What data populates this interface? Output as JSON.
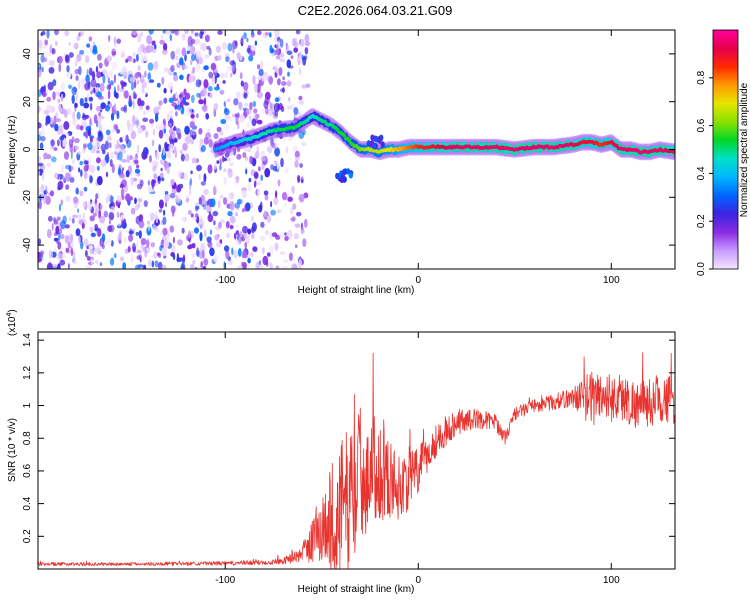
{
  "title": "C2E2.2026.064.03.21.G09",
  "chart_data": [
    {
      "type": "heatmap",
      "xlabel": "Height of straight line (km)",
      "ylabel": "Frequency (Hz)",
      "xlim": [
        -197,
        133
      ],
      "ylim": [
        -50,
        50
      ],
      "xticks": [
        -100,
        0,
        100
      ],
      "yticks": [
        -40,
        -20,
        0,
        20,
        40
      ],
      "colorbar": {
        "label": "Normalized spectral amplitude",
        "range": [
          0,
          1
        ],
        "ticks": [
          0.0,
          0.2,
          0.4,
          0.6,
          0.8
        ],
        "colors": [
          "#f4e6ff",
          "#c79bff",
          "#8a2be2",
          "#3a24e0",
          "#0066ff",
          "#00b7ff",
          "#00e0c8",
          "#00d62a",
          "#8ae000",
          "#e6e600",
          "#ff9a00",
          "#ff2a00",
          "#e6004d",
          "#ff0099"
        ]
      },
      "noise_region": {
        "x_from": -197,
        "x_to": -72,
        "note": "broadband low-amplitude noise"
      },
      "ridge": {
        "height_km": [
          -105,
          -95,
          -85,
          -75,
          -65,
          -60,
          -55,
          -50,
          -45,
          -40,
          -35,
          -30,
          -25,
          -20,
          -15,
          -10,
          -5,
          0,
          10,
          20,
          30,
          40,
          50,
          60,
          70,
          80,
          85,
          90,
          95,
          100,
          105,
          110,
          115,
          120,
          125,
          133
        ],
        "frequency_hz": [
          0,
          3,
          5,
          8,
          9,
          11,
          14,
          12,
          10,
          7,
          3,
          0,
          0,
          -1,
          0,
          0,
          1,
          1,
          1,
          1,
          1,
          1,
          0,
          1,
          1,
          2,
          3,
          3,
          2,
          3,
          0,
          0,
          -1,
          -1,
          0,
          -1
        ],
        "amplitude": [
          0.35,
          0.4,
          0.45,
          0.5,
          0.55,
          0.5,
          0.45,
          0.5,
          0.5,
          0.55,
          0.55,
          0.6,
          0.65,
          0.65,
          0.7,
          0.75,
          0.8,
          0.85,
          0.9,
          0.95,
          0.95,
          0.95,
          0.95,
          0.95,
          0.95,
          0.95,
          0.9,
          0.9,
          0.85,
          0.9,
          0.95,
          0.95,
          0.95,
          0.95,
          0.95,
          0.9
        ]
      },
      "secondary_patches": [
        {
          "height_km": -38,
          "frequency_hz": -11,
          "amplitude": 0.35
        },
        {
          "height_km": -22,
          "frequency_hz": 3,
          "amplitude": 0.3
        }
      ]
    },
    {
      "type": "line",
      "xlabel": "Height of straight line (km)",
      "ylabel": "SNR (10 * v/v)",
      "y_multiplier_label": "(x10",
      "y_multiplier_exponent": "4",
      "y_multiplier_close": ")",
      "xlim": [
        -197,
        133
      ],
      "ylim": [
        0,
        1.45
      ],
      "xticks": [
        -100,
        0,
        100
      ],
      "yticks": [
        0.2,
        0.4,
        0.6,
        0.8,
        1.0,
        1.2,
        1.4
      ],
      "series": [
        {
          "name": "SNR",
          "color": "#e8332f",
          "x": [
            -197,
            -150,
            -100,
            -80,
            -70,
            -62,
            -58,
            -55,
            -50,
            -45,
            -40,
            -35,
            -32,
            -28,
            -25,
            -20,
            -15,
            -10,
            -5,
            0,
            5,
            10,
            20,
            30,
            40,
            45,
            50,
            60,
            70,
            80,
            85,
            90,
            95,
            100,
            105,
            110,
            115,
            120,
            125,
            133
          ],
          "y": [
            0.03,
            0.03,
            0.035,
            0.04,
            0.05,
            0.08,
            0.12,
            0.18,
            0.25,
            0.3,
            0.35,
            0.45,
            0.55,
            0.6,
            0.62,
            0.6,
            0.55,
            0.5,
            0.55,
            0.6,
            0.7,
            0.8,
            0.9,
            0.92,
            0.9,
            0.8,
            0.95,
            1.0,
            1.02,
            1.05,
            1.05,
            1.05,
            1.06,
            1.05,
            1.05,
            1.02,
            1.0,
            1.02,
            1.05,
            1.03
          ],
          "spread": [
            0.01,
            0.01,
            0.012,
            0.015,
            0.02,
            0.04,
            0.08,
            0.15,
            0.25,
            0.35,
            0.45,
            0.45,
            0.45,
            0.42,
            0.35,
            0.3,
            0.25,
            0.2,
            0.2,
            0.15,
            0.12,
            0.1,
            0.08,
            0.06,
            0.05,
            0.04,
            0.04,
            0.04,
            0.05,
            0.06,
            0.12,
            0.18,
            0.15,
            0.15,
            0.15,
            0.15,
            0.15,
            0.15,
            0.15,
            0.15
          ]
        }
      ]
    }
  ]
}
